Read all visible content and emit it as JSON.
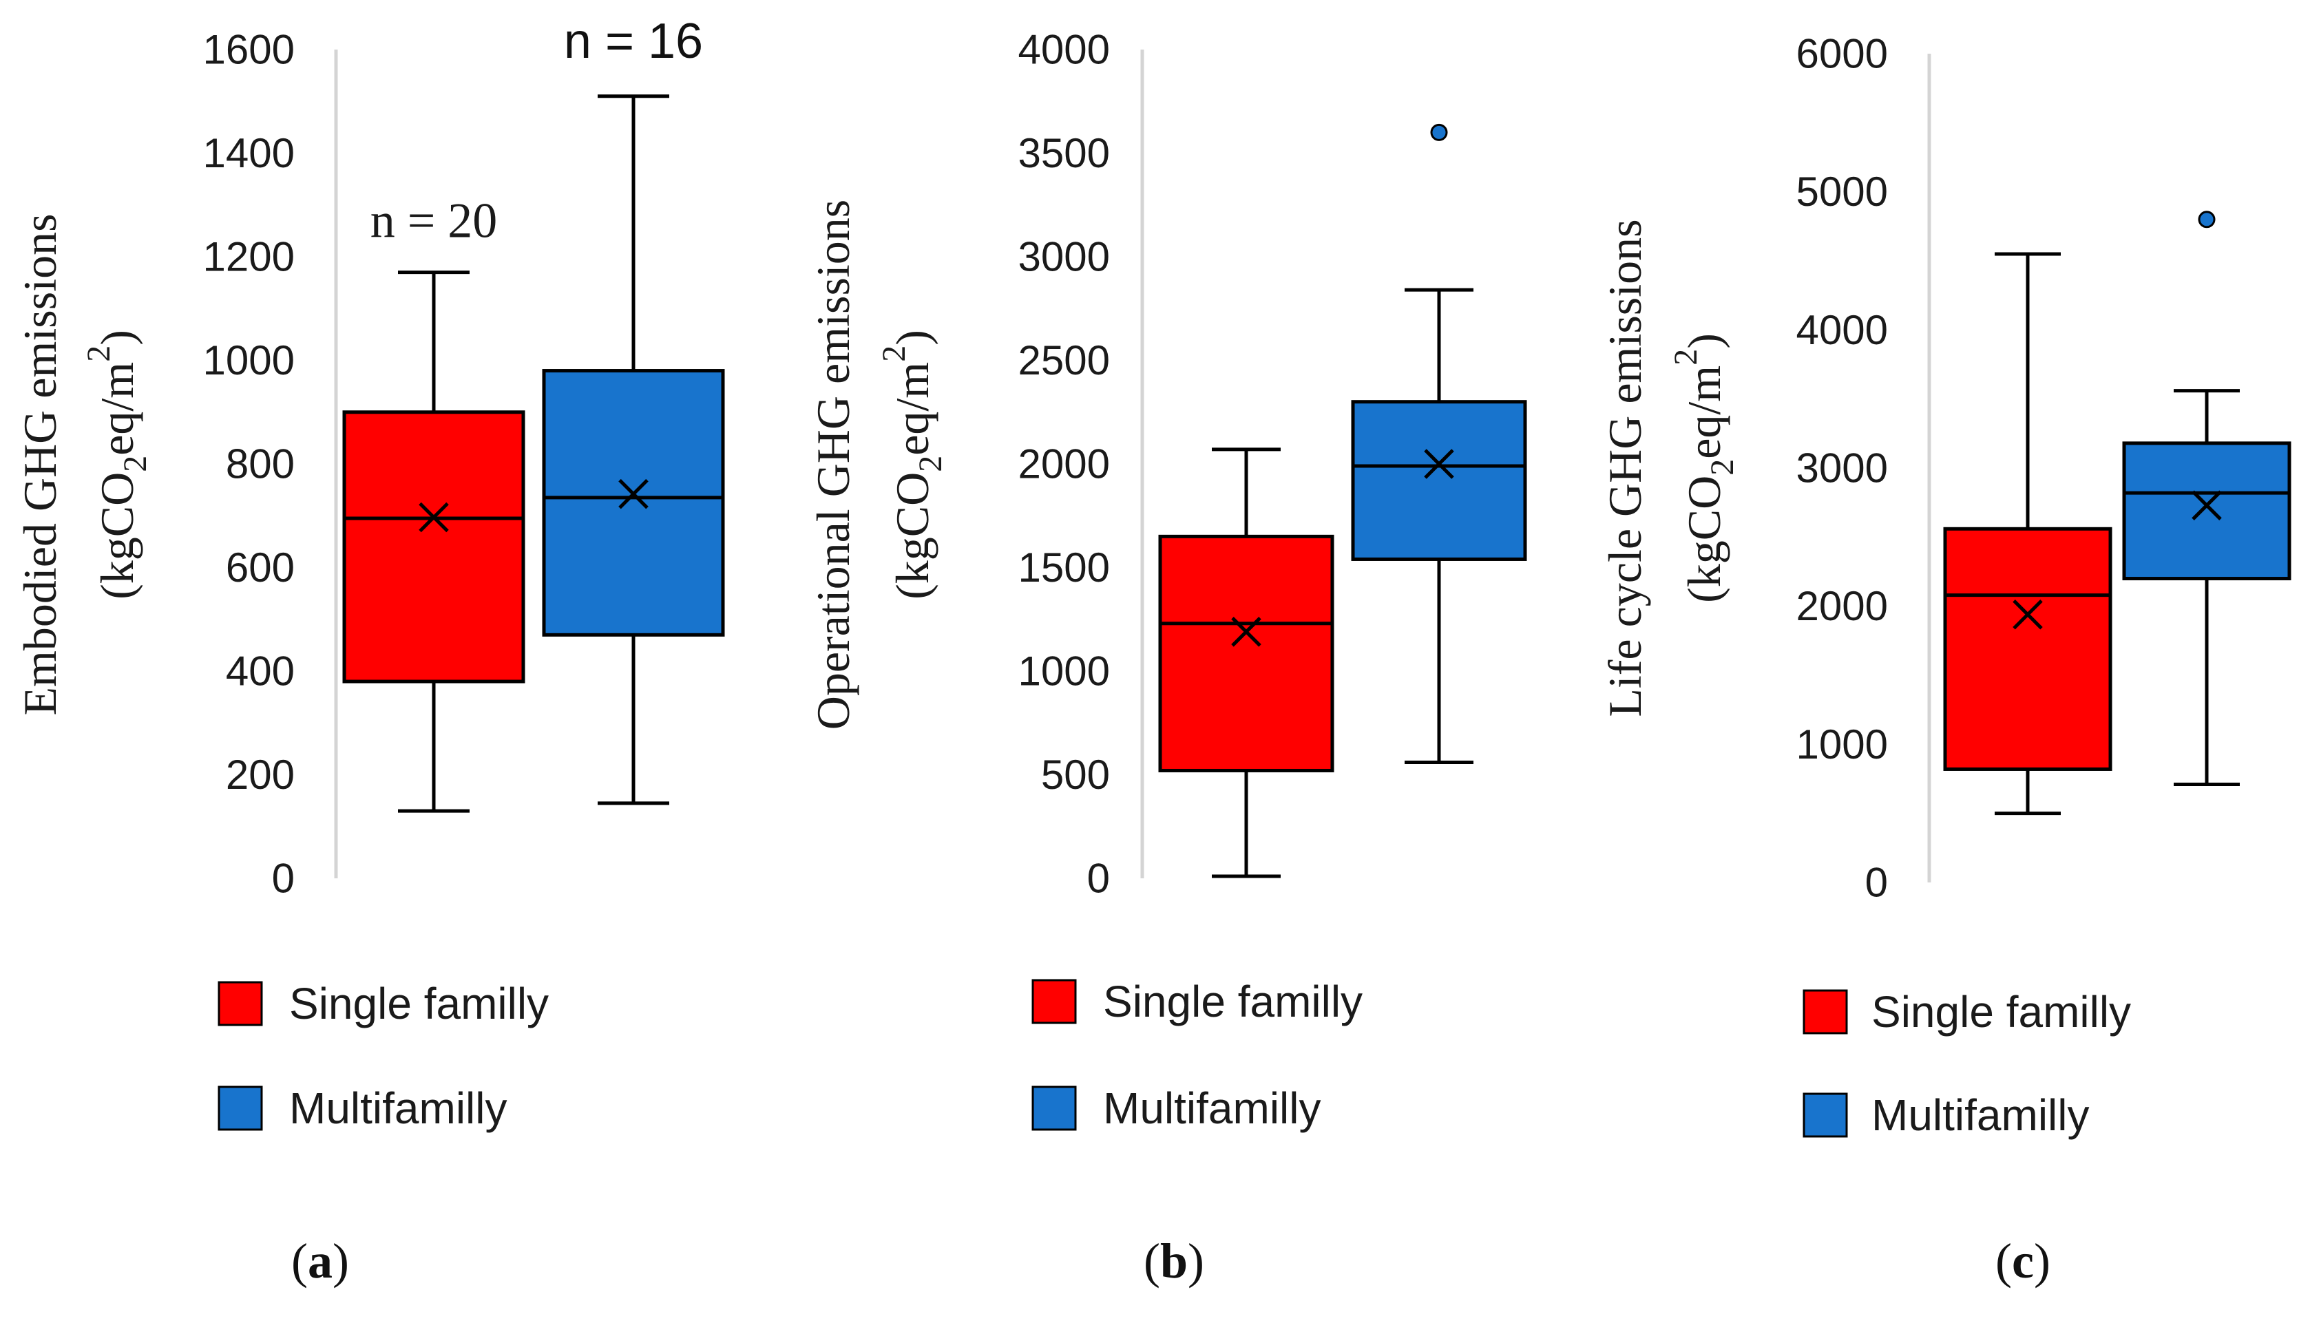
{
  "colors": {
    "single": "#ff0000",
    "multi": "#1874cd",
    "axis": "#d4d4d4",
    "stroke": "#000000"
  },
  "chart_data": [
    {
      "type": "box",
      "panel_label": "a",
      "ylabel_line1": "Embodied GHG emissions",
      "ylabel_line2_pre": "(kgCO",
      "ylabel_line2_sub": "2",
      "ylabel_line2_mid": "eq/m",
      "ylabel_line2_sup": "2",
      "ylabel_line2_post": ")",
      "ylim": [
        0,
        1600
      ],
      "yticks": [
        0,
        200,
        400,
        600,
        800,
        1000,
        1200,
        1400,
        1600
      ],
      "annotations": [
        {
          "text": "n = 20",
          "series": 0,
          "style": "serif"
        },
        {
          "text": "n = 16",
          "series": 1,
          "style": "sans"
        }
      ],
      "legend": [
        "Single familly",
        "Multifamilly"
      ],
      "series": [
        {
          "name": "Single familly",
          "min": 130,
          "q1": 380,
          "median": 695,
          "q3": 900,
          "max": 1170,
          "mean": 697,
          "outliers": []
        },
        {
          "name": "Multifamilly",
          "min": 145,
          "q1": 470,
          "median": 735,
          "q3": 980,
          "max": 1510,
          "mean": 742,
          "outliers": []
        }
      ]
    },
    {
      "type": "box",
      "panel_label": "b",
      "ylabel_line1": "Operational GHG emissions",
      "ylabel_line2_pre": "(kgCO",
      "ylabel_line2_sub": "2",
      "ylabel_line2_mid": "eq/m",
      "ylabel_line2_sup": "2",
      "ylabel_line2_post": ")",
      "ylim": [
        0,
        4000
      ],
      "yticks": [
        0,
        500,
        1000,
        1500,
        2000,
        2500,
        3000,
        3500,
        4000
      ],
      "annotations": [],
      "legend": [
        "Single familly",
        "Multifamilly"
      ],
      "series": [
        {
          "name": "Single familly",
          "min": 10,
          "q1": 520,
          "median": 1230,
          "q3": 1650,
          "max": 2070,
          "mean": 1190,
          "outliers": []
        },
        {
          "name": "Multifamilly",
          "min": 560,
          "q1": 1540,
          "median": 1990,
          "q3": 2300,
          "max": 2840,
          "mean": 2000,
          "outliers": [
            3600
          ]
        }
      ]
    },
    {
      "type": "box",
      "panel_label": "c",
      "ylabel_line1": "Life cycle GHG emissions",
      "ylabel_line2_pre": "(kgCO",
      "ylabel_line2_sub": "2",
      "ylabel_line2_mid": "eq/m",
      "ylabel_line2_sup": "2",
      "ylabel_line2_post": ")",
      "ylim": [
        0,
        6000
      ],
      "yticks": [
        0,
        1000,
        2000,
        3000,
        4000,
        5000,
        6000
      ],
      "annotations": [],
      "legend": [
        "Single familly",
        "Multifamilly"
      ],
      "series": [
        {
          "name": "Single familly",
          "min": 500,
          "q1": 820,
          "median": 2080,
          "q3": 2560,
          "max": 4550,
          "mean": 1940,
          "outliers": []
        },
        {
          "name": "Multifamilly",
          "min": 710,
          "q1": 2200,
          "median": 2820,
          "q3": 3180,
          "max": 3560,
          "mean": 2730,
          "outliers": [
            4800
          ]
        }
      ]
    }
  ]
}
